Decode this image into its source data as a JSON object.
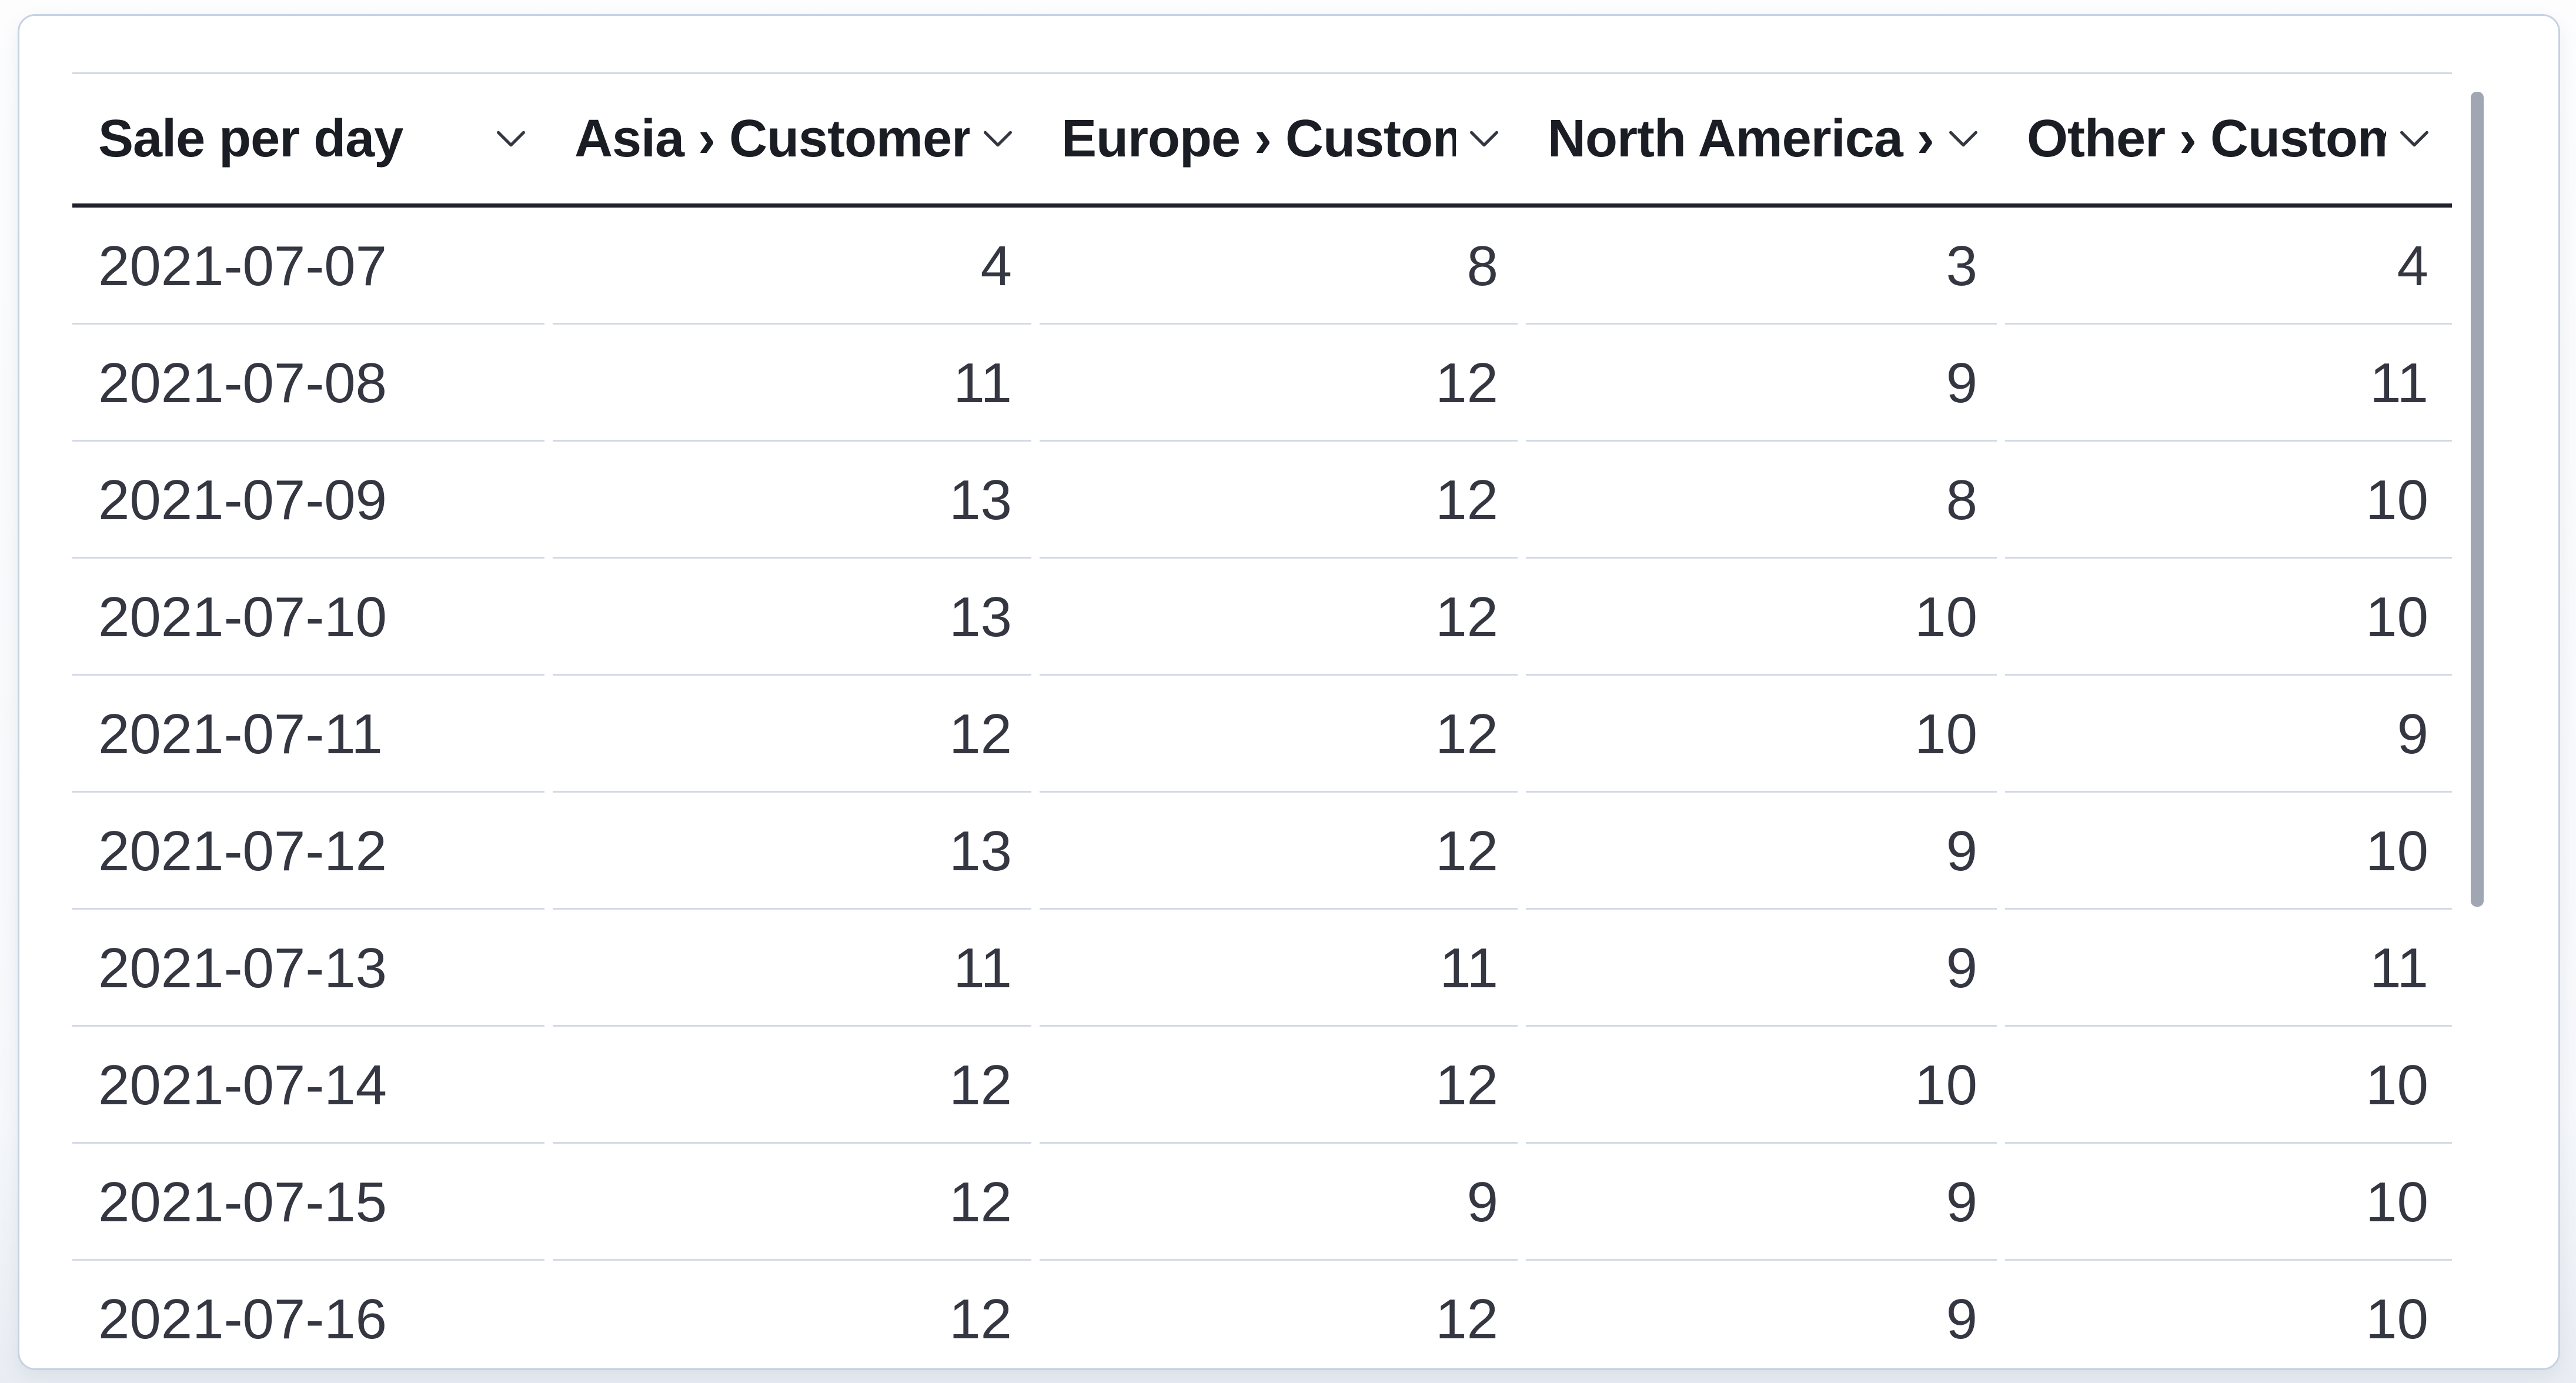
{
  "table": {
    "title": "Sale per day",
    "columns": [
      {
        "id": "date",
        "label": "Sale per day",
        "align": "left"
      },
      {
        "id": "asia",
        "label": "Asia › Customers",
        "align": "right"
      },
      {
        "id": "europe",
        "label": "Europe › Customers",
        "align": "right"
      },
      {
        "id": "north-america",
        "label": "North America › Customers",
        "align": "right"
      },
      {
        "id": "other",
        "label": "Other › Customers",
        "align": "right"
      }
    ],
    "rows": [
      [
        "2021-07-07",
        "4",
        "8",
        "3",
        "4"
      ],
      [
        "2021-07-08",
        "11",
        "12",
        "9",
        "11"
      ],
      [
        "2021-07-09",
        "13",
        "12",
        "8",
        "10"
      ],
      [
        "2021-07-10",
        "13",
        "12",
        "10",
        "10"
      ],
      [
        "2021-07-11",
        "12",
        "12",
        "10",
        "9"
      ],
      [
        "2021-07-12",
        "13",
        "12",
        "9",
        "10"
      ],
      [
        "2021-07-13",
        "11",
        "11",
        "9",
        "11"
      ],
      [
        "2021-07-14",
        "12",
        "12",
        "10",
        "10"
      ],
      [
        "2021-07-15",
        "12",
        "9",
        "9",
        "10"
      ],
      [
        "2021-07-16",
        "12",
        "12",
        "9",
        "10"
      ]
    ]
  },
  "icons": {
    "column_menu": "chevron-down"
  },
  "scrollbar": {
    "orientation": "vertical",
    "thumb_color": "#a0a7b3"
  },
  "colors": {
    "card_background": "#ffffff",
    "card_border": "#c6d2e2",
    "header_text": "#1a1d23",
    "body_text": "#343741",
    "header_underline": "#1f222a",
    "row_divider": "#d3dae6",
    "top_rule": "#d3dae6"
  }
}
